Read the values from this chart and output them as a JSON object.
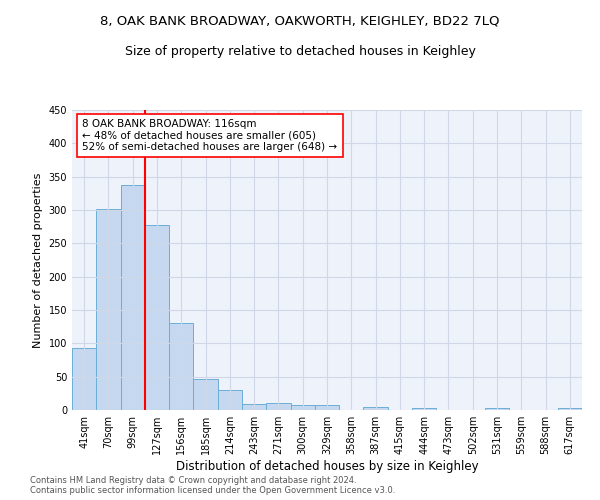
{
  "title": "8, OAK BANK BROADWAY, OAKWORTH, KEIGHLEY, BD22 7LQ",
  "subtitle": "Size of property relative to detached houses in Keighley",
  "xlabel": "Distribution of detached houses by size in Keighley",
  "ylabel": "Number of detached properties",
  "bar_color": "#c5d8f0",
  "bar_edge_color": "#6aaed6",
  "categories": [
    "41sqm",
    "70sqm",
    "99sqm",
    "127sqm",
    "156sqm",
    "185sqm",
    "214sqm",
    "243sqm",
    "271sqm",
    "300sqm",
    "329sqm",
    "358sqm",
    "387sqm",
    "415sqm",
    "444sqm",
    "473sqm",
    "502sqm",
    "531sqm",
    "559sqm",
    "588sqm",
    "617sqm"
  ],
  "values": [
    93,
    302,
    338,
    277,
    131,
    46,
    30,
    9,
    10,
    8,
    7,
    0,
    4,
    0,
    3,
    0,
    0,
    3,
    0,
    0,
    3
  ],
  "vline_index": 2,
  "annotation_text": "8 OAK BANK BROADWAY: 116sqm\n← 48% of detached houses are smaller (605)\n52% of semi-detached houses are larger (648) →",
  "annotation_box_color": "white",
  "annotation_box_edge_color": "red",
  "vline_color": "red",
  "ylim": [
    0,
    450
  ],
  "yticks": [
    0,
    50,
    100,
    150,
    200,
    250,
    300,
    350,
    400,
    450
  ],
  "grid_color": "#d0d8e8",
  "background_color": "#eef2fb",
  "footer_text": "Contains HM Land Registry data © Crown copyright and database right 2024.\nContains public sector information licensed under the Open Government Licence v3.0.",
  "title_fontsize": 9.5,
  "subtitle_fontsize": 9,
  "xlabel_fontsize": 8.5,
  "ylabel_fontsize": 8,
  "tick_fontsize": 7,
  "annotation_fontsize": 7.5,
  "footer_fontsize": 6
}
